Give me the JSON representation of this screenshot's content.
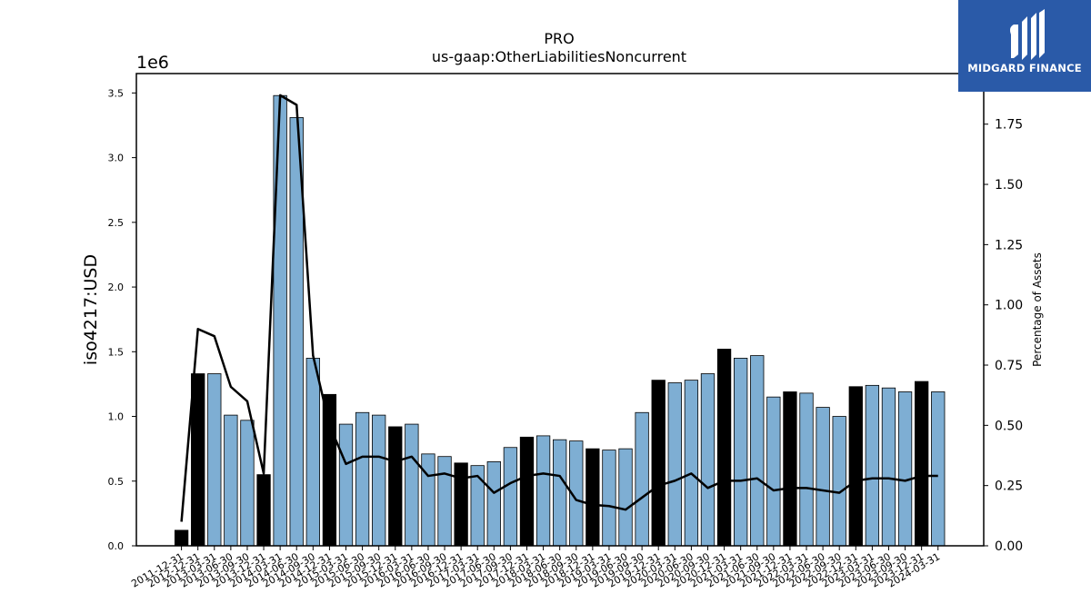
{
  "chart_data": {
    "type": "bar",
    "title": "PRO",
    "subtitle": "us-gaap:OtherLiabilitiesNoncurrent",
    "ylabel": "iso4217:USD",
    "y_multiplier": "1e6",
    "y2label": "Percentage of Assets",
    "ylim": [
      0,
      3.65
    ],
    "y2lim": [
      0,
      1.96
    ],
    "yticks": [
      "0.0",
      "0.5",
      "1.0",
      "1.5",
      "2.0",
      "2.5",
      "3.0",
      "3.5"
    ],
    "y2ticks": [
      "0.00",
      "0.25",
      "0.50",
      "0.75",
      "1.00",
      "1.25",
      "1.50",
      "1.75"
    ],
    "categories": [
      "2011-12-31",
      "2012-12-31",
      "2013-03-31",
      "2013-06-30",
      "2013-09-30",
      "2013-12-31",
      "2014-03-31",
      "2014-06-30",
      "2014-09-30",
      "2014-12-31",
      "2015-03-31",
      "2015-06-30",
      "2015-09-30",
      "2015-12-31",
      "2016-03-31",
      "2016-06-30",
      "2016-09-30",
      "2016-12-31",
      "2017-03-31",
      "2017-06-30",
      "2017-09-30",
      "2017-12-31",
      "2018-03-31",
      "2018-06-30",
      "2018-09-30",
      "2018-12-31",
      "2019-03-31",
      "2019-06-30",
      "2019-09-30",
      "2019-12-31",
      "2020-03-31",
      "2020-06-30",
      "2020-09-30",
      "2020-12-31",
      "2021-03-31",
      "2021-06-30",
      "2021-09-30",
      "2021-12-31",
      "2022-03-31",
      "2022-06-30",
      "2022-09-30",
      "2022-12-31",
      "2023-03-31",
      "2023-06-30",
      "2023-09-30",
      "2023-12-31",
      "2024-03-31"
    ],
    "series": [
      {
        "kind": "bar",
        "unit": "millions USD",
        "values": [
          0.12,
          1.33,
          1.33,
          1.01,
          0.97,
          0.55,
          3.48,
          3.31,
          1.45,
          1.17,
          0.94,
          1.03,
          1.01,
          0.92,
          0.94,
          0.71,
          0.69,
          0.64,
          0.62,
          0.65,
          0.76,
          0.84,
          0.85,
          0.82,
          0.81,
          0.75,
          0.74,
          0.75,
          1.03,
          1.28,
          1.26,
          1.28,
          1.33,
          1.52,
          1.45,
          1.47,
          1.15,
          1.19,
          1.18,
          1.07,
          1.0,
          1.23,
          1.24,
          1.22,
          1.19,
          1.27,
          1.19
        ],
        "highlight_fiscal_year_end": [
          true,
          true,
          false,
          false,
          false,
          true,
          false,
          false,
          false,
          true,
          false,
          false,
          false,
          true,
          false,
          false,
          false,
          true,
          false,
          false,
          false,
          true,
          false,
          false,
          false,
          true,
          false,
          false,
          false,
          true,
          false,
          false,
          false,
          true,
          false,
          false,
          false,
          true,
          false,
          false,
          false,
          true,
          false,
          false,
          false,
          true,
          false
        ],
        "color": "#7eaed3",
        "highlight_color": "#000000"
      },
      {
        "kind": "line",
        "axis": "right",
        "values": [
          0.1,
          0.9,
          0.87,
          0.66,
          0.6,
          0.3,
          1.87,
          1.83,
          0.79,
          0.5,
          0.34,
          0.37,
          0.37,
          0.35,
          0.37,
          0.29,
          0.3,
          0.28,
          0.29,
          0.22,
          0.26,
          0.29,
          0.3,
          0.29,
          0.19,
          0.17,
          0.165,
          0.15,
          0.2,
          0.25,
          0.27,
          0.3,
          0.24,
          0.27,
          0.27,
          0.28,
          0.23,
          0.24,
          0.24,
          0.23,
          0.22,
          0.27,
          0.28,
          0.28,
          0.27,
          0.29,
          0.29
        ],
        "color": "#000000"
      }
    ],
    "legend": "none",
    "grid": false
  },
  "logo": {
    "brand": "MIDGARD FINANCE",
    "background": "#2a5aa8"
  }
}
